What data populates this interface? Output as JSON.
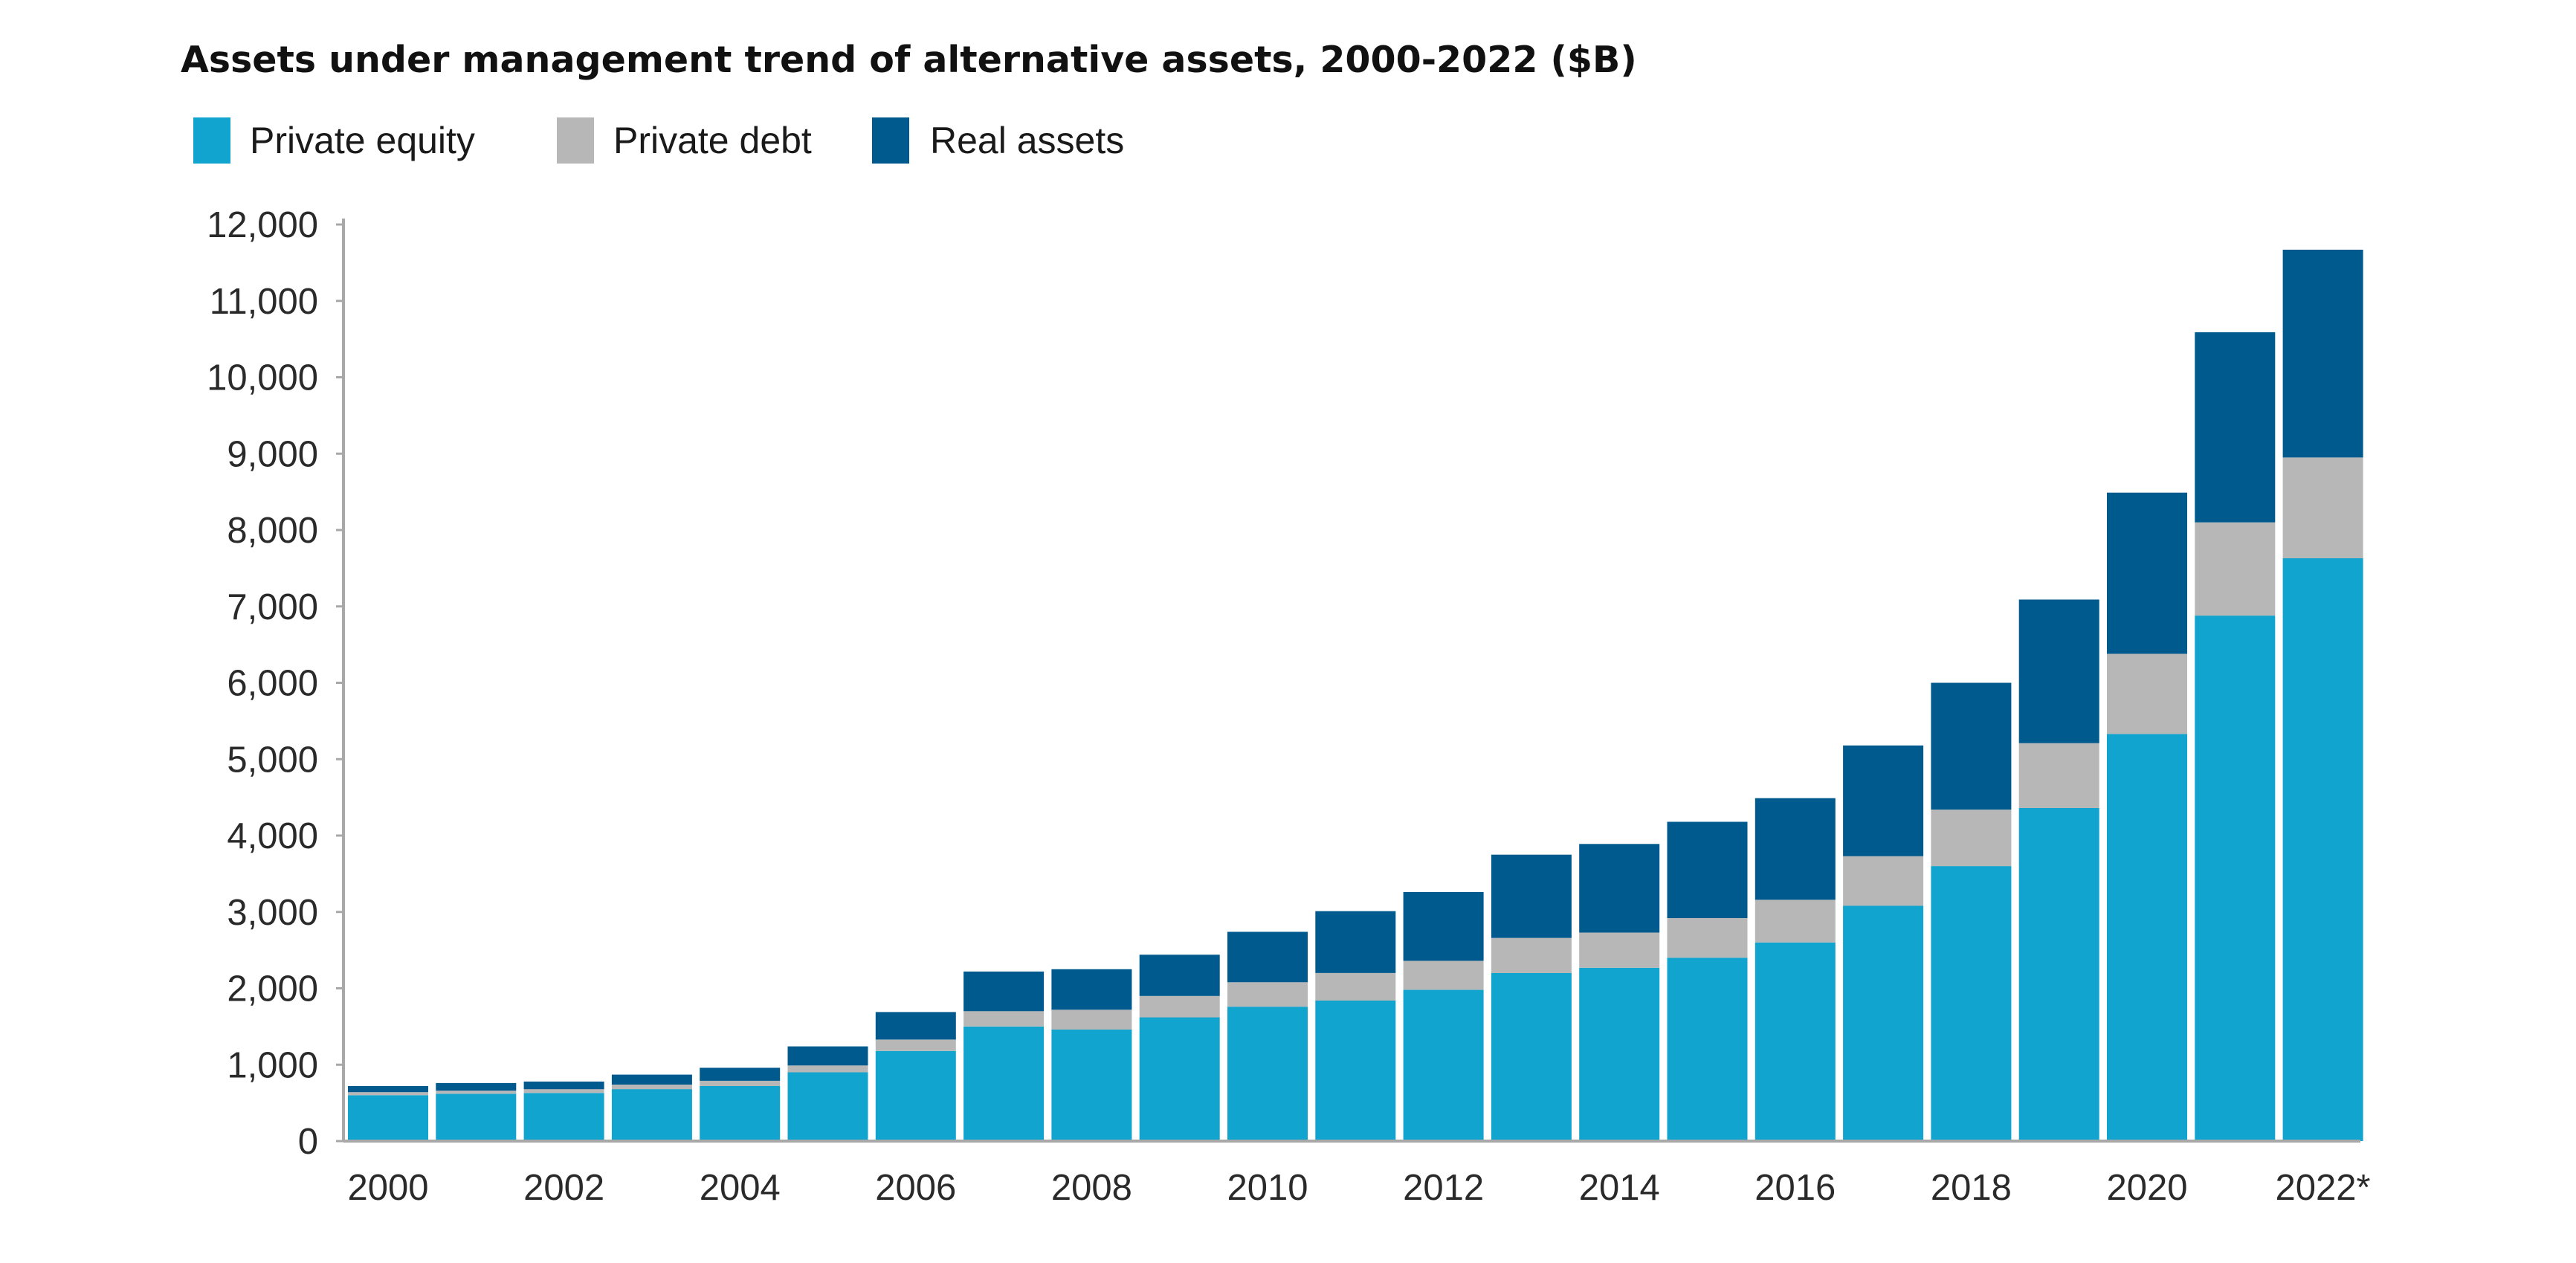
{
  "chart_data": {
    "type": "bar",
    "stacked": true,
    "title": "Assets under management trend of alternative assets, 2000-2022 ($B)",
    "xlabel": "",
    "ylabel": "",
    "categories": [
      "2000",
      "2001",
      "2002",
      "2003",
      "2004",
      "2005",
      "2006",
      "2007",
      "2008",
      "2009",
      "2010",
      "2011",
      "2012",
      "2013",
      "2014",
      "2015",
      "2016",
      "2017",
      "2018",
      "2019",
      "2020",
      "2021",
      "2022"
    ],
    "x_tick_labels": [
      {
        "index": 0,
        "label": "2000"
      },
      {
        "index": 2,
        "label": "2002"
      },
      {
        "index": 4,
        "label": "2004"
      },
      {
        "index": 6,
        "label": "2006"
      },
      {
        "index": 8,
        "label": "2008"
      },
      {
        "index": 10,
        "label": "2010"
      },
      {
        "index": 12,
        "label": "2012"
      },
      {
        "index": 14,
        "label": "2014"
      },
      {
        "index": 16,
        "label": "2016"
      },
      {
        "index": 18,
        "label": "2018"
      },
      {
        "index": 20,
        "label": "2020"
      },
      {
        "index": 22,
        "label": "2022*"
      }
    ],
    "y_ticks": [
      {
        "value": 0,
        "label": "0"
      },
      {
        "value": 1000,
        "label": "1,000"
      },
      {
        "value": 2000,
        "label": "2,000"
      },
      {
        "value": 3000,
        "label": "3,000"
      },
      {
        "value": 4000,
        "label": "4,000"
      },
      {
        "value": 5000,
        "label": "5,000"
      },
      {
        "value": 6000,
        "label": "6,000"
      },
      {
        "value": 7000,
        "label": "7,000"
      },
      {
        "value": 8000,
        "label": "8,000"
      },
      {
        "value": 9000,
        "label": "9,000"
      },
      {
        "value": 10000,
        "label": "10,000"
      },
      {
        "value": 11000,
        "label": "11,000"
      },
      {
        "value": 12000,
        "label": "12,000"
      }
    ],
    "ylim": [
      0,
      12000
    ],
    "grid": false,
    "legend_position": "top-left",
    "series": [
      {
        "name": "Private equity",
        "color": "#11a4cf",
        "values": [
          600,
          620,
          630,
          680,
          720,
          900,
          1180,
          1500,
          1460,
          1620,
          1760,
          1840,
          1980,
          2200,
          2270,
          2400,
          2600,
          3080,
          3600,
          4360,
          5330,
          6880,
          7630
        ]
      },
      {
        "name": "Private debt",
        "color": "#b7b7b7",
        "values": [
          40,
          40,
          50,
          60,
          70,
          90,
          150,
          200,
          260,
          280,
          320,
          360,
          380,
          460,
          460,
          520,
          560,
          650,
          740,
          850,
          1050,
          1220,
          1320
        ]
      },
      {
        "name": "Real assets",
        "color": "#005a8e",
        "values": [
          80,
          100,
          100,
          130,
          170,
          250,
          360,
          520,
          530,
          540,
          660,
          810,
          900,
          1090,
          1160,
          1260,
          1330,
          1450,
          1660,
          1880,
          2110,
          2490,
          2720
        ]
      }
    ]
  }
}
